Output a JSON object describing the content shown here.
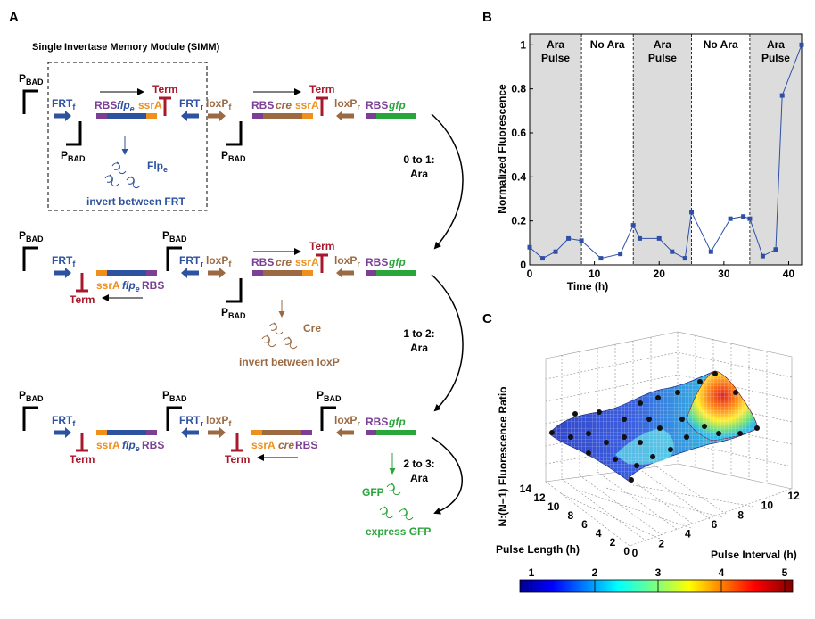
{
  "colors": {
    "blue": "#2c52a0",
    "brown": "#9b6a43",
    "red": "#a8192b",
    "purple": "#7b3f96",
    "green": "#2aa53b",
    "orange": "#ef8f1c",
    "black": "#000000",
    "shade": "#dcdcdc",
    "line": "#2f4fa6"
  },
  "panel_a": {
    "label": "A",
    "title": "Single Invertase Memory Module (SIMM)",
    "pbad_main": "P",
    "pbad_sub": "BAD",
    "frt_main": "FRT",
    "frt_f_sub": "f",
    "frt_r_sub": "r",
    "loxp_main": "loxP",
    "loxp_f_sub": "f",
    "loxp_r_sub": "r",
    "rbs": "RBS",
    "flpe_main": "flp",
    "flpe_sub": "e",
    "cre": "cre",
    "ssra": "ssrA",
    "term": "Term",
    "gfp": "gfp",
    "flpe_protein_main": "Flp",
    "flpe_protein_sub": "e",
    "invert_frt": "invert between FRT",
    "cre_protein": "Cre",
    "invert_loxp": "invert between loxP",
    "gfp_protein": "GFP",
    "express_gfp": "express GFP",
    "transitions": [
      {
        "top": "0 to 1:",
        "bottom": "Ara"
      },
      {
        "top": "1 to 2:",
        "bottom": "Ara"
      },
      {
        "top": "2 to 3:",
        "bottom": "Ara"
      }
    ]
  },
  "panel_b": {
    "label": "B",
    "phases": [
      "Ara Pulse",
      "No Ara",
      "Ara Pulse",
      "No Ara",
      "Ara Pulse"
    ],
    "chart_data": {
      "type": "line",
      "xlabel": "Time (h)",
      "ylabel": "Normalized Fluorescence",
      "xlim": [
        0,
        42
      ],
      "ylim": [
        0,
        1.05
      ],
      "xticks": [
        0,
        10,
        20,
        30,
        40
      ],
      "yticks": [
        0,
        0.2,
        0.4,
        0.6,
        0.8,
        1
      ],
      "ytick_labels": [
        "0",
        "0.2",
        "0.4",
        "0.6",
        "0.8",
        "1"
      ],
      "shaded_intervals": [
        [
          0,
          8
        ],
        [
          16,
          25
        ],
        [
          34,
          42
        ]
      ],
      "dashed_lines_at": [
        8,
        16,
        25,
        34
      ],
      "x": [
        0,
        2,
        4,
        6,
        8,
        11,
        14,
        16,
        17,
        20,
        22,
        24,
        25,
        28,
        31,
        33,
        34,
        36,
        38,
        39,
        42
      ],
      "y": [
        0.08,
        0.03,
        0.06,
        0.12,
        0.11,
        0.03,
        0.05,
        0.18,
        0.12,
        0.12,
        0.06,
        0.03,
        0.24,
        0.06,
        0.21,
        0.22,
        0.21,
        0.04,
        0.07,
        0.77,
        1.0
      ]
    }
  },
  "panel_c": {
    "label": "C",
    "chart_data": {
      "type": "heatmap",
      "zlabel": "N:(N−1) Fluorescence Ratio",
      "xlabel": "Pulse Interval (h)",
      "ylabel": "Pulse Length (h)",
      "xticks": [
        0,
        2,
        4,
        6,
        8,
        10,
        12
      ],
      "yticks": [
        0,
        2,
        4,
        6,
        8,
        10,
        12,
        14
      ],
      "colorbar_ticks": [
        1,
        2,
        3,
        4,
        5
      ],
      "colorbar_range": [
        1,
        5
      ],
      "colormap": "jet",
      "peak_region": "high ratio (~5) at short pulse length with long pulse interval",
      "surface_style": "mesh with black measured data points"
    }
  }
}
